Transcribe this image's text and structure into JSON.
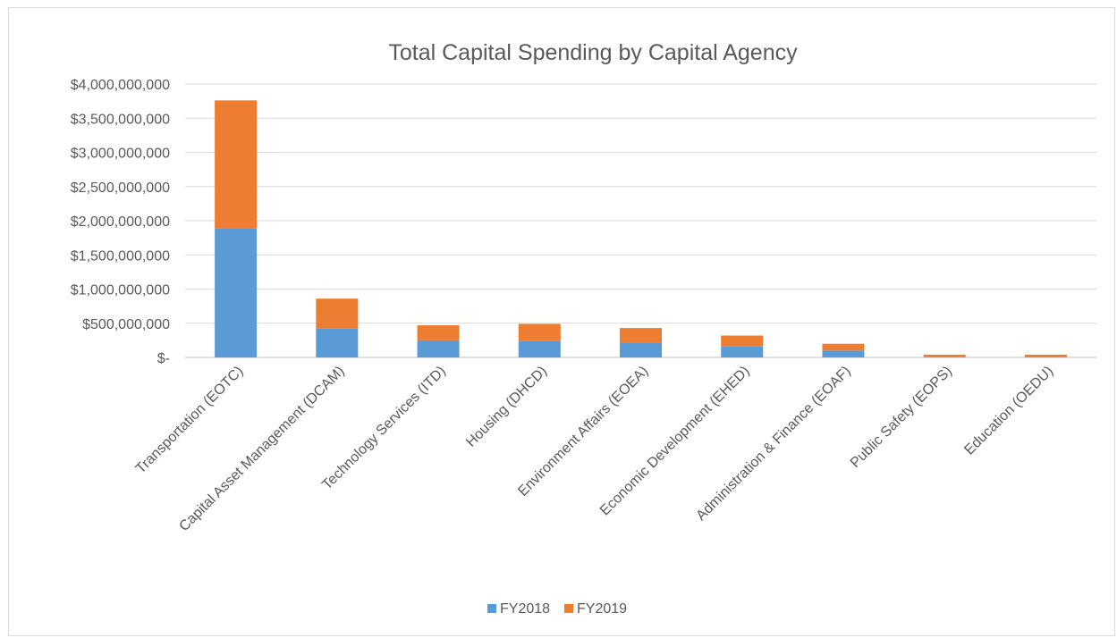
{
  "chart_data": {
    "type": "bar",
    "stacked": true,
    "title": "Total Capital Spending by Capital Agency",
    "xlabel": "",
    "ylabel": "",
    "ylim": [
      0,
      4000000000
    ],
    "y_tick_labels": [
      "$-",
      "$500,000,000",
      "$1,000,000,000",
      "$1,500,000,000",
      "$2,000,000,000",
      "$2,500,000,000",
      "$3,000,000,000",
      "$3,500,000,000",
      "$4,000,000,000"
    ],
    "categories": [
      "Transportation (EOTC)",
      "Capital Asset Management (DCAM)",
      "Technology Services (ITD)",
      "Housing (DHCD)",
      "Environment Affairs (EOEA)",
      "Economic Development (EHED)",
      "Administration & Finance (EOAF)",
      "Public Safety (EOPS)",
      "Education (OEDU)"
    ],
    "series": [
      {
        "name": "FY2018",
        "color": "#5b9bd5",
        "values": [
          1890000000,
          420000000,
          250000000,
          240000000,
          220000000,
          160000000,
          100000000,
          10000000,
          10000000
        ]
      },
      {
        "name": "FY2019",
        "color": "#ed7d31",
        "values": [
          1870000000,
          440000000,
          220000000,
          250000000,
          210000000,
          160000000,
          100000000,
          30000000,
          30000000
        ]
      }
    ],
    "grid": true,
    "legend": "bottom"
  }
}
